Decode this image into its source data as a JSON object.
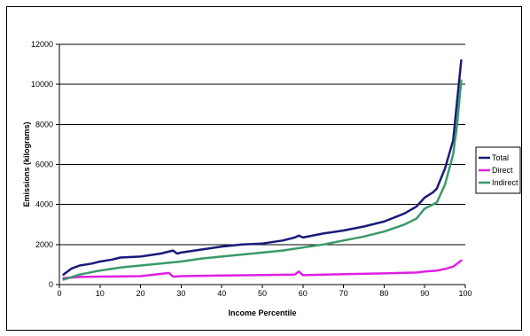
{
  "chart_data": {
    "type": "line",
    "title": "",
    "xlabel": "Income Percentile",
    "ylabel": "Emissions (kilograms)",
    "xlim": [
      0,
      100
    ],
    "ylim": [
      0,
      12000
    ],
    "xticks": [
      0,
      10,
      20,
      30,
      40,
      50,
      60,
      70,
      80,
      90,
      100
    ],
    "yticks": [
      0,
      2000,
      4000,
      6000,
      8000,
      10000,
      12000
    ],
    "grid": "horizontal",
    "legend_position": "right",
    "series": [
      {
        "name": "Total",
        "color": "#1a1a7a",
        "x": [
          1,
          3,
          5,
          8,
          10,
          13,
          15,
          20,
          25,
          28,
          29,
          30,
          35,
          40,
          45,
          50,
          55,
          58,
          59,
          60,
          65,
          70,
          75,
          80,
          85,
          88,
          90,
          92,
          93,
          95,
          97,
          98,
          99
        ],
        "values": [
          500,
          800,
          950,
          1050,
          1150,
          1250,
          1350,
          1400,
          1550,
          1700,
          1550,
          1600,
          1750,
          1900,
          2000,
          2050,
          2200,
          2350,
          2450,
          2350,
          2550,
          2700,
          2900,
          3150,
          3550,
          3900,
          4350,
          4600,
          4800,
          5800,
          7200,
          9200,
          11200
        ]
      },
      {
        "name": "Direct",
        "color": "#e020e0",
        "x": [
          1,
          5,
          10,
          20,
          27,
          28,
          30,
          40,
          50,
          58,
          59,
          60,
          70,
          80,
          88,
          90,
          93,
          95,
          97,
          99
        ],
        "values": [
          320,
          380,
          400,
          420,
          580,
          400,
          420,
          450,
          480,
          500,
          650,
          470,
          520,
          560,
          600,
          650,
          700,
          780,
          900,
          1200
        ]
      },
      {
        "name": "Indirect",
        "color": "#3a9a6a",
        "x": [
          1,
          5,
          10,
          15,
          20,
          25,
          30,
          35,
          40,
          45,
          50,
          55,
          60,
          65,
          70,
          75,
          80,
          85,
          88,
          90,
          93,
          95,
          97,
          98,
          99
        ],
        "values": [
          250,
          500,
          700,
          850,
          950,
          1050,
          1150,
          1300,
          1400,
          1500,
          1600,
          1700,
          1850,
          2000,
          2200,
          2400,
          2650,
          3000,
          3300,
          3800,
          4100,
          5000,
          6500,
          8000,
          10200
        ]
      }
    ]
  }
}
